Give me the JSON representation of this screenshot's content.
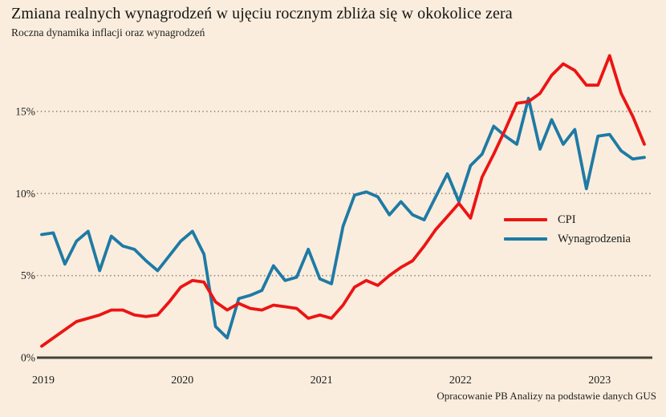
{
  "footer": {
    "source": "Opracowanie PB Analizy na podstawie danych GUS"
  },
  "colors": {
    "background": "#faeddd",
    "cpi_red": "#ec1414",
    "wages_blue": "#1e7aa5",
    "axis": "#44423a",
    "grid_dots": "#8d8678",
    "text": "#1b1b1b"
  },
  "chart_data": {
    "type": "line",
    "title": "Zmiana realnych wynagrodzeń w ujęciu rocznym zbliża się w okokolice zera",
    "subtitle": "Roczna dynamika inflacji oraz wynagrodzeń",
    "xlabel": "",
    "ylabel": "",
    "grid": "horizontal-dotted",
    "legend_position": "right-middle",
    "ylim": [
      0,
      19
    ],
    "yticks": [
      0,
      5,
      10,
      15
    ],
    "ytick_suffix": "%",
    "xticks": [
      "2019",
      "2020",
      "2021",
      "2022",
      "2023"
    ],
    "xtick_indices": [
      0,
      12,
      24,
      36,
      48
    ],
    "x": [
      "2019-01",
      "2019-02",
      "2019-03",
      "2019-04",
      "2019-05",
      "2019-06",
      "2019-07",
      "2019-08",
      "2019-09",
      "2019-10",
      "2019-11",
      "2019-12",
      "2020-01",
      "2020-02",
      "2020-03",
      "2020-04",
      "2020-05",
      "2020-06",
      "2020-07",
      "2020-08",
      "2020-09",
      "2020-10",
      "2020-11",
      "2020-12",
      "2021-01",
      "2021-02",
      "2021-03",
      "2021-04",
      "2021-05",
      "2021-06",
      "2021-07",
      "2021-08",
      "2021-09",
      "2021-10",
      "2021-11",
      "2021-12",
      "2022-01",
      "2022-02",
      "2022-03",
      "2022-04",
      "2022-05",
      "2022-06",
      "2022-07",
      "2022-08",
      "2022-09",
      "2022-10",
      "2022-11",
      "2022-12",
      "2023-01",
      "2023-02",
      "2023-03",
      "2023-04",
      "2023-05"
    ],
    "series": [
      {
        "name": "Wynagrodzenia",
        "id": "wynagrodzenia",
        "color": "#1e7aa5",
        "values": [
          7.5,
          7.6,
          5.7,
          7.1,
          7.7,
          5.3,
          7.4,
          6.8,
          6.6,
          5.9,
          5.3,
          6.2,
          7.1,
          7.7,
          6.3,
          1.9,
          1.2,
          3.6,
          3.8,
          4.1,
          5.6,
          4.7,
          4.9,
          6.6,
          4.8,
          4.5,
          8.0,
          9.9,
          10.1,
          9.8,
          8.7,
          9.5,
          8.7,
          8.4,
          9.8,
          11.2,
          9.5,
          11.7,
          12.4,
          14.1,
          13.5,
          13.0,
          15.8,
          12.7,
          14.5,
          13.0,
          13.9,
          10.3,
          13.5,
          13.6,
          12.6,
          12.1,
          12.2
        ]
      },
      {
        "name": "CPI",
        "id": "cpi",
        "color": "#ec1414",
        "values": [
          0.7,
          1.2,
          1.7,
          2.2,
          2.4,
          2.6,
          2.9,
          2.9,
          2.6,
          2.5,
          2.6,
          3.4,
          4.3,
          4.7,
          4.6,
          3.4,
          2.9,
          3.3,
          3.0,
          2.9,
          3.2,
          3.1,
          3.0,
          2.4,
          2.6,
          2.4,
          3.2,
          4.3,
          4.7,
          4.4,
          5.0,
          5.5,
          5.9,
          6.8,
          7.8,
          8.6,
          9.4,
          8.5,
          11.0,
          12.4,
          13.9,
          15.5,
          15.6,
          16.1,
          17.2,
          17.9,
          17.5,
          16.6,
          16.6,
          18.4,
          16.1,
          14.7,
          13.0
        ]
      }
    ]
  },
  "legend_order": [
    "CPI",
    "Wynagrodzenia"
  ]
}
